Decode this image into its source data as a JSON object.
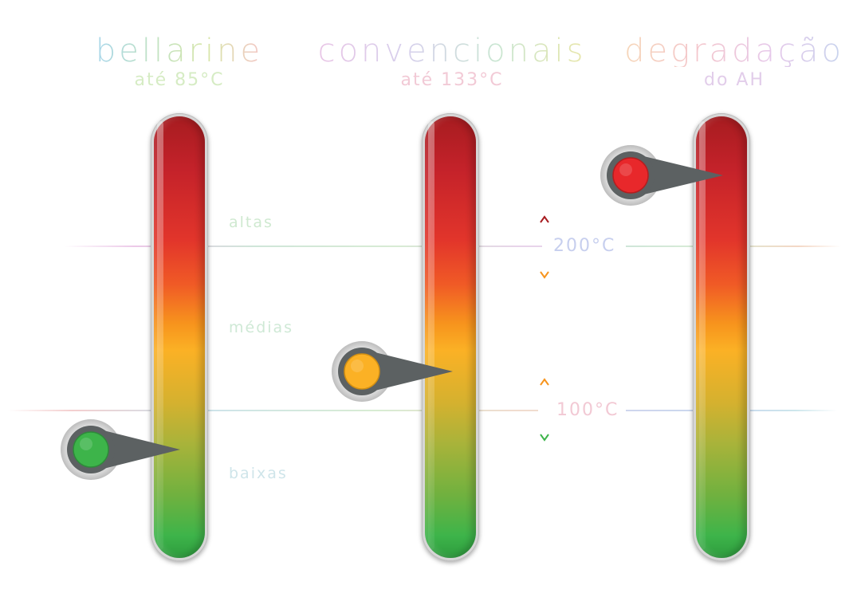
{
  "columns": [
    {
      "title": "bellarine",
      "subtitle": "até 85°C",
      "indicator_color": "#3db44a"
    },
    {
      "title": "convencionais",
      "subtitle": "até 133°C",
      "indicator_color": "#fbb125"
    },
    {
      "title": "degradação",
      "subtitle": "do AH",
      "indicator_color": "#e8282b"
    }
  ],
  "zones": {
    "high": "altas",
    "medium": "médias",
    "low": "baixas"
  },
  "temperatures": {
    "t200": "200°C",
    "t100": "100°C"
  },
  "colors": {
    "hot": "#a71c20",
    "warm": "#f7941d",
    "cool": "#3db44a",
    "indicator_body": "#5c6162"
  }
}
